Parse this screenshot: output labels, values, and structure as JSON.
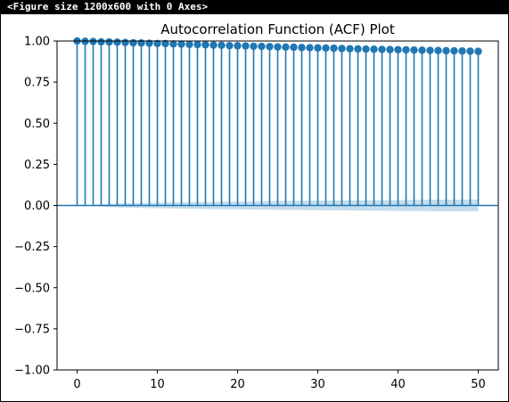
{
  "console_header": "<Figure size 1200x600 with 0 Axes>",
  "colors": {
    "series": "#1f77b4",
    "confidence_band": "#1f77b4",
    "axes": "#000000",
    "background": "#ffffff",
    "header_background": "#000000",
    "header_text": "#ffffff"
  },
  "chart_data": {
    "type": "scatter",
    "title": "Autocorrelation Function (ACF) Plot",
    "xlabel": "",
    "ylabel": "",
    "xlim": [
      -2.5,
      52.5
    ],
    "ylim": [
      -1.0,
      1.0
    ],
    "xticks": [
      0,
      10,
      20,
      30,
      40,
      50
    ],
    "xtick_labels": [
      "0",
      "10",
      "20",
      "30",
      "40",
      "50"
    ],
    "yticks": [
      1.0,
      0.75,
      0.5,
      0.25,
      0.0,
      -0.25,
      -0.5,
      -0.75,
      -1.0
    ],
    "ytick_labels": [
      "1.00",
      "0.75",
      "0.50",
      "0.25",
      "0.00",
      "−0.25",
      "−0.50",
      "−0.75",
      "−1.00"
    ],
    "grid": false,
    "legend": false,
    "style": "stem",
    "x": [
      0,
      1,
      2,
      3,
      4,
      5,
      6,
      7,
      8,
      9,
      10,
      11,
      12,
      13,
      14,
      15,
      16,
      17,
      18,
      19,
      20,
      21,
      22,
      23,
      24,
      25,
      26,
      27,
      28,
      29,
      30,
      31,
      32,
      33,
      34,
      35,
      36,
      37,
      38,
      39,
      40,
      41,
      42,
      43,
      44,
      45,
      46,
      47,
      48,
      49,
      50
    ],
    "values": [
      1.0,
      0.998,
      0.997,
      0.995,
      0.994,
      0.993,
      0.991,
      0.989,
      0.988,
      0.986,
      0.985,
      0.984,
      0.982,
      0.981,
      0.979,
      0.978,
      0.977,
      0.975,
      0.974,
      0.972,
      0.971,
      0.97,
      0.968,
      0.967,
      0.966,
      0.964,
      0.963,
      0.962,
      0.96,
      0.959,
      0.958,
      0.957,
      0.956,
      0.954,
      0.953,
      0.952,
      0.951,
      0.95,
      0.949,
      0.948,
      0.947,
      0.946,
      0.945,
      0.944,
      0.943,
      0.942,
      0.941,
      0.94,
      0.939,
      0.938,
      0.937
    ],
    "confidence_band": {
      "x": [
        0,
        5,
        10,
        15,
        20,
        25,
        30,
        35,
        40,
        45,
        50
      ],
      "upper": [
        0.0,
        0.012,
        0.017,
        0.021,
        0.024,
        0.027,
        0.029,
        0.031,
        0.033,
        0.035,
        0.036
      ],
      "lower": [
        0.0,
        -0.012,
        -0.017,
        -0.021,
        -0.024,
        -0.027,
        -0.029,
        -0.031,
        -0.033,
        -0.035,
        -0.036
      ]
    }
  }
}
